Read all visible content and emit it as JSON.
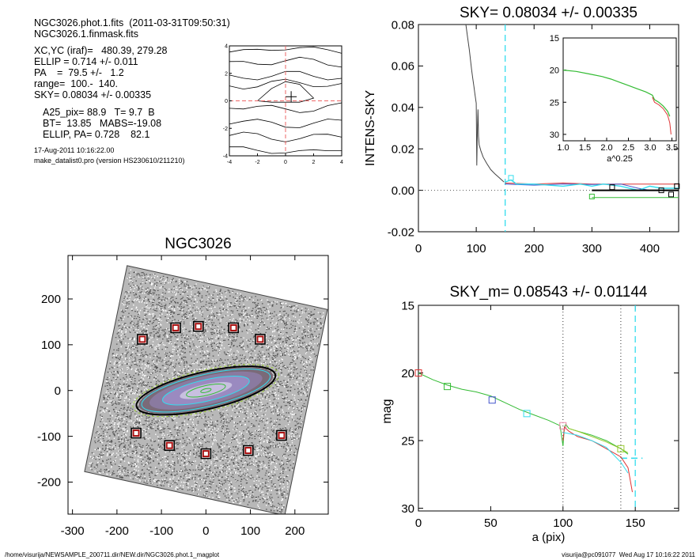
{
  "info": {
    "header_lines": [
      "NGC3026.phot.1.fits  (2011-03-31T09:50:31)",
      "NGC3026.1.finmask.fits"
    ],
    "param_lines": [
      "XC,YC (iraf)=   480.39, 279.28",
      "ELLIP = 0.714 +/- 0.011",
      "PA    =  79.5 +/-   1.2",
      "range=  100.-  140.",
      "SKY= 0.08034 +/- 0.00335"
    ],
    "morph_lines": [
      "A25_pix= 88.9   T= 9.7  B",
      "BT=  13.85   MABS=-19.08",
      "ELLIP, PA= 0.728    82.1"
    ],
    "date": "17-Aug-2011 10:16:22.00",
    "program": "make_datalist0.pro (version HS230610/211210)"
  },
  "footer": {
    "path": "/home/visurija/NEWSAMPLE_200711.dir/NEW.dir/NGC3026.phot.1_magplot",
    "user": "visurija@pc091077  Wed Aug 17 10:16:22 2011"
  },
  "colors": {
    "cyan": "#33ddee",
    "green": "#33bb33",
    "red": "#dd3333",
    "blue": "#4455cc",
    "pink": "#ee88aa",
    "lime": "#99cc33",
    "orange": "#ee9933",
    "maroon": "#aa1111",
    "magenta": "#cc44cc"
  },
  "chart_data": [
    {
      "id": "contour",
      "type": "contour",
      "title": "",
      "xlim": [
        -4,
        4
      ],
      "ylim": [
        -4,
        4
      ],
      "xticks": [
        "-4",
        "-2",
        "0",
        "2",
        "4"
      ],
      "yticks": [
        "-4",
        "-2",
        "0",
        "2",
        "4"
      ],
      "contour_levels_y": [
        3.7,
        2.8,
        1.8,
        1.2,
        -0.5,
        -1.6,
        -2.6,
        -3.6
      ],
      "center": [
        0.4,
        0.3
      ]
    },
    {
      "id": "sky",
      "type": "line",
      "title": "SKY= 0.08034 +/- 0.00335",
      "xlabel": "",
      "ylabel": "INTENS-SKY",
      "xlim": [
        0,
        450
      ],
      "ylim": [
        -0.02,
        0.08
      ],
      "xticks": [
        "0",
        "100",
        "200",
        "300",
        "400"
      ],
      "yticks": [
        "-0.02",
        "0.00",
        "0.02",
        "0.04",
        "0.06",
        "0.08"
      ],
      "vline_x": 150,
      "profile": {
        "x": [
          82,
          85,
          88,
          90,
          92,
          94,
          96,
          98,
          100,
          101,
          102,
          103,
          104,
          105,
          108,
          112,
          118,
          125,
          132,
          140,
          148
        ],
        "y": [
          0.08,
          0.074,
          0.068,
          0.063,
          0.058,
          0.054,
          0.05,
          0.046,
          0.042,
          0.012,
          0.03,
          0.039,
          0.026,
          0.022,
          0.019,
          0.016,
          0.013,
          0.01,
          0.008,
          0.006,
          0.004
        ]
      },
      "sky_cyan": {
        "x": [
          150,
          160,
          170,
          200,
          250,
          280,
          300,
          320,
          350,
          380,
          400,
          420,
          440,
          450
        ],
        "y": [
          0.004,
          0.005,
          0.003,
          0.003,
          0.002,
          0.003,
          0.002,
          0.003,
          0.002,
          0.0,
          0.002,
          0.001,
          0.001,
          0.001
        ]
      },
      "sky_red": {
        "x": [
          150,
          200,
          250,
          300,
          350,
          400,
          450
        ],
        "y": [
          0.0035,
          0.003,
          0.0035,
          0.003,
          0.003,
          0.003,
          0.003
        ]
      },
      "sky_blue": {
        "x": [
          150,
          200,
          250,
          300,
          350,
          380,
          400,
          450
        ],
        "y": [
          0.003,
          0.0025,
          0.003,
          0.0028,
          0.003,
          0.001,
          0.0,
          0.0
        ]
      },
      "sky_black": {
        "x": [
          300,
          450
        ],
        "y": [
          0.0,
          0.0
        ]
      },
      "sky_green": {
        "x": [
          300,
          450
        ],
        "y": [
          -0.0035,
          -0.0035
        ]
      },
      "squares": [
        {
          "x": 160,
          "y": 0.006,
          "c": "cyan"
        },
        {
          "x": 300,
          "y": -0.003,
          "c": "green"
        },
        {
          "x": 335,
          "y": 0.0015,
          "c": "black"
        },
        {
          "x": 420,
          "y": 0.0,
          "c": "black"
        },
        {
          "x": 437,
          "y": -0.002,
          "c": "black"
        },
        {
          "x": 447,
          "y": 0.002,
          "c": "black"
        }
      ],
      "inset": {
        "xlim": [
          1.0,
          3.6
        ],
        "ylim": [
          15,
          31
        ],
        "xticks": [
          "1.0",
          "1.5",
          "2.0",
          "2.5",
          "3.0",
          "3.5"
        ],
        "yticks": [
          "15",
          "20",
          "25",
          "30"
        ],
        "xlabel": "a^0.25",
        "green": {
          "x": [
            1.0,
            1.3,
            1.6,
            1.9,
            2.1,
            2.3,
            2.5,
            2.7,
            2.9,
            3.05,
            3.1,
            3.2,
            3.3,
            3.4,
            3.45
          ],
          "y": [
            20.0,
            20.2,
            20.6,
            21.0,
            21.4,
            21.9,
            22.4,
            22.9,
            23.4,
            23.9,
            24.6,
            25.0,
            25.6,
            26.4,
            27.2
          ]
        },
        "red": {
          "x": [
            3.05,
            3.1,
            3.2,
            3.3,
            3.4,
            3.45,
            3.48
          ],
          "y": [
            24.2,
            25.0,
            25.4,
            26.0,
            27.0,
            28.2,
            30.0
          ]
        }
      }
    },
    {
      "id": "image",
      "type": "scatter",
      "title": "NGC3026",
      "xlim": [
        -310,
        275
      ],
      "ylim": [
        -270,
        295
      ],
      "xticks": [
        "-300",
        "-200",
        "-100",
        "0",
        "100",
        "200"
      ],
      "yticks": [
        "-200",
        "-100",
        "0",
        "100",
        "200"
      ],
      "masked_sources": [
        {
          "x": -143,
          "y": 112
        },
        {
          "x": -68,
          "y": 137
        },
        {
          "x": -17,
          "y": 140
        },
        {
          "x": 62,
          "y": 137
        },
        {
          "x": 122,
          "y": 112
        },
        {
          "x": -157,
          "y": -93
        },
        {
          "x": -82,
          "y": -120
        },
        {
          "x": 0,
          "y": -138
        },
        {
          "x": 95,
          "y": -131
        },
        {
          "x": 170,
          "y": -98
        }
      ],
      "ellipses": [
        {
          "a": 160,
          "b": 42,
          "pa": 13,
          "c": "black",
          "w": 2
        },
        {
          "a": 148,
          "b": 36,
          "pa": 13,
          "c": "cyan",
          "w": 1
        },
        {
          "a": 100,
          "b": 24,
          "pa": 13,
          "c": "cyan",
          "w": 1
        },
        {
          "a": 45,
          "b": 11,
          "pa": 13,
          "c": "green",
          "w": 1
        },
        {
          "a": 12,
          "b": 4,
          "pa": 13,
          "c": "green",
          "w": 1
        }
      ]
    },
    {
      "id": "mag",
      "type": "line",
      "title": "SKY_m=  0.08543 +/- 0.01144",
      "xlabel": "a (pix)",
      "ylabel": "mag",
      "xlim": [
        0,
        180
      ],
      "ylim": [
        15,
        30.2
      ],
      "xticks": [
        "0",
        "50",
        "100",
        "150"
      ],
      "yticks": [
        "15",
        "20",
        "25",
        "30"
      ],
      "vlines_dotted": [
        100,
        140
      ],
      "vline_cyan": 150,
      "sky_level_segment": {
        "x": [
          140,
          155
        ],
        "y": [
          26.3,
          26.3
        ]
      },
      "series": [
        {
          "name": "",
          "color": "green",
          "x": [
            0,
            10,
            20,
            30,
            40,
            50,
            60,
            70,
            80,
            90,
            98,
            100,
            101,
            102,
            104,
            110,
            120,
            130,
            140,
            145
          ],
          "y": [
            20.0,
            20.5,
            20.9,
            21.2,
            21.4,
            21.7,
            22.2,
            22.7,
            23.1,
            23.5,
            23.9,
            25.4,
            24.0,
            23.8,
            24.1,
            24.3,
            24.6,
            25.0,
            25.6,
            26.0
          ]
        },
        {
          "name": "",
          "color": "red",
          "x": [
            100,
            101,
            104,
            110,
            120,
            130,
            140,
            145,
            148
          ],
          "y": [
            25.0,
            24.0,
            24.3,
            24.7,
            25.0,
            25.6,
            26.2,
            27.0,
            28.8
          ]
        },
        {
          "name": "",
          "color": "lime",
          "x": [
            104,
            110,
            120,
            130,
            140,
            145
          ],
          "y": [
            24.1,
            24.3,
            24.7,
            25.1,
            25.6,
            25.9
          ]
        },
        {
          "name": "",
          "color": "cyan",
          "x": [
            100,
            110,
            120,
            130,
            140,
            145
          ],
          "y": [
            24.4,
            24.6,
            25.0,
            25.5,
            26.6,
            27.4
          ]
        }
      ],
      "squares": [
        {
          "x": 0,
          "y": 20.0,
          "c": "red"
        },
        {
          "x": 20,
          "y": 21.0,
          "c": "green"
        },
        {
          "x": 51,
          "y": 22.0,
          "c": "blue"
        },
        {
          "x": 75,
          "y": 23.0,
          "c": "cyan"
        },
        {
          "x": 100,
          "y": 23.9,
          "c": "pink"
        },
        {
          "x": 140,
          "y": 25.6,
          "c": "lime"
        }
      ]
    }
  ]
}
